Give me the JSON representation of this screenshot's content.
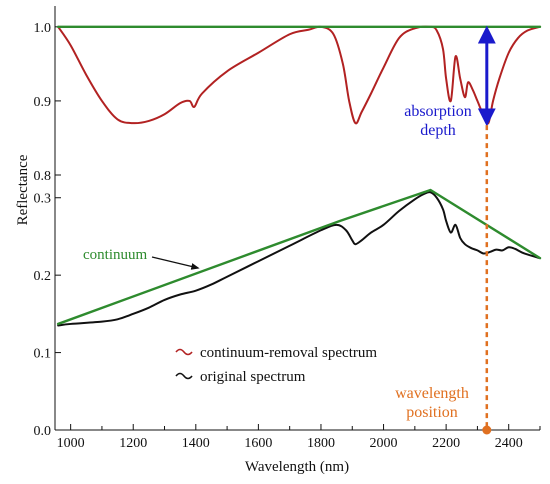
{
  "chart_data": {
    "type": "line",
    "xlabel": "Wavelength (nm)",
    "ylabel": "Reflectance",
    "xlim": [
      950,
      2500
    ],
    "x_ticks": [
      1000,
      1200,
      1400,
      1600,
      1800,
      2000,
      2200,
      2400
    ],
    "top_panel": {
      "ylim": [
        0.8,
        1.02
      ],
      "y_ticks": [
        "0.8",
        "0.9",
        "1.0"
      ],
      "y_tick_values": [
        0.8,
        0.9,
        1.0
      ],
      "series": [
        {
          "name": "continuum-removal spectrum",
          "color": "#b22222",
          "x": [
            960,
            1000,
            1050,
            1100,
            1150,
            1200,
            1250,
            1300,
            1350,
            1380,
            1395,
            1420,
            1500,
            1600,
            1700,
            1760,
            1800,
            1840,
            1870,
            1890,
            1910,
            1930,
            1960,
            2000,
            2050,
            2100,
            2150,
            2170,
            2190,
            2200,
            2215,
            2230,
            2245,
            2260,
            2270,
            2285,
            2300,
            2320,
            2335,
            2350,
            2370,
            2400,
            2430,
            2460,
            2500
          ],
          "values": [
            1.0,
            0.975,
            0.935,
            0.9,
            0.875,
            0.87,
            0.873,
            0.882,
            0.897,
            0.9,
            0.892,
            0.91,
            0.94,
            0.965,
            0.99,
            0.996,
            1.0,
            0.99,
            0.95,
            0.9,
            0.87,
            0.885,
            0.91,
            0.945,
            0.985,
            0.998,
            1.0,
            0.995,
            0.97,
            0.93,
            0.9,
            0.96,
            0.93,
            0.905,
            0.925,
            0.915,
            0.9,
            0.88,
            0.87,
            0.9,
            0.93,
            0.965,
            0.985,
            0.995,
            1.0
          ]
        },
        {
          "name": "continuum",
          "color": "#2e8b2e",
          "x": [
            960,
            2500
          ],
          "values": [
            1.0,
            1.0
          ]
        }
      ]
    },
    "bottom_panel": {
      "ylim": [
        0.0,
        0.31
      ],
      "y_ticks": [
        "0.0",
        "0.1",
        "0.2",
        "0.3"
      ],
      "y_tick_values": [
        0.0,
        0.1,
        0.2,
        0.3
      ],
      "series": [
        {
          "name": "original spectrum",
          "color": "#111111",
          "x": [
            960,
            1000,
            1100,
            1150,
            1200,
            1250,
            1300,
            1350,
            1400,
            1450,
            1500,
            1600,
            1700,
            1800,
            1850,
            1880,
            1900,
            1910,
            1930,
            1960,
            2000,
            2050,
            2100,
            2130,
            2150,
            2170,
            2190,
            2200,
            2215,
            2230,
            2245,
            2260,
            2280,
            2300,
            2320,
            2340,
            2360,
            2380,
            2400,
            2420,
            2450,
            2500
          ],
          "values": [
            0.135,
            0.137,
            0.14,
            0.143,
            0.15,
            0.158,
            0.168,
            0.175,
            0.18,
            0.188,
            0.198,
            0.218,
            0.238,
            0.258,
            0.265,
            0.258,
            0.245,
            0.24,
            0.245,
            0.255,
            0.265,
            0.283,
            0.298,
            0.305,
            0.307,
            0.3,
            0.285,
            0.27,
            0.255,
            0.265,
            0.248,
            0.24,
            0.235,
            0.232,
            0.228,
            0.23,
            0.233,
            0.232,
            0.236,
            0.234,
            0.228,
            0.222
          ]
        },
        {
          "name": "continuum",
          "color": "#2e8b2e",
          "x": [
            960,
            1860,
            2150,
            2500
          ],
          "values": [
            0.137,
            0.27,
            0.31,
            0.222
          ]
        }
      ]
    },
    "annotations": {
      "continuum_label": "continuum",
      "absorption_depth_line1": "absorption",
      "absorption_depth_line2": "depth",
      "wavelength_position_line1": "wavelength",
      "wavelength_position_line2": "position",
      "absorption_x": 2330
    },
    "legend": {
      "placement": "bottom-center",
      "items": [
        "continuum-removal spectrum",
        "original spectrum"
      ]
    },
    "colors": {
      "continuum": "#2e8b2e",
      "continuum_removed": "#b22222",
      "original": "#111111",
      "depth_arrow": "#1a1acc",
      "position_marker": "#e07020"
    }
  }
}
